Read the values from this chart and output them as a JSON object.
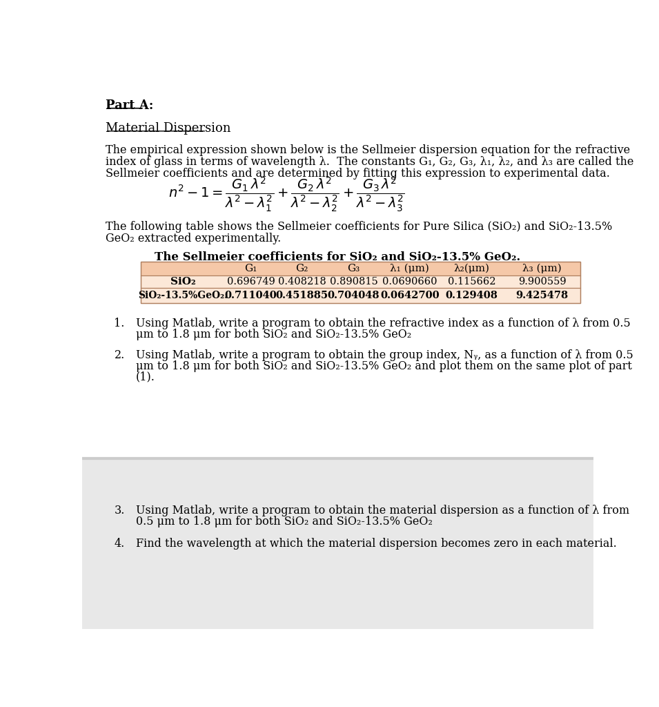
{
  "bg_color": "#ffffff",
  "part_a_title": "Part A:",
  "subtitle": "Material Dispersion",
  "para1_line1": "The empirical expression shown below is the Sellmeier dispersion equation for the refractive",
  "para1_line2": "index of glass in terms of wavelength λ.  The constants G₁, G₂, G₃, λ₁, λ₂, and λ₃ are called the",
  "para1_line3": "Sellmeier coefficients and are determined by fitting this expression to experimental data.",
  "para2_line1": "The following table shows the Sellmeier coefficients for Pure Silica (SiO₂) and SiO₂-13.5%",
  "para2_line2": "GeO₂ extracted experimentally.",
  "table_title": "The Sellmeier coefficients for SiO₂ and SiO₂-13.5% GeO₂.",
  "col_headers": [
    "G₁",
    "G₂",
    "G₃",
    "λ₁ (μm)",
    "λ₂(μm)",
    "λ₃ (μm)"
  ],
  "row1_label": "SiO₂",
  "row1_data": [
    "0.696749",
    "0.408218",
    "0.890815",
    "0.0690660",
    "0.115662",
    "9.900559"
  ],
  "row2_label": "SiO₂-13.5%GeO₂.",
  "row2_data": [
    "0.711040",
    "0.451885",
    "0.704048",
    "0.0642700",
    "0.129408",
    "9.425478"
  ],
  "item1_a": "Using Matlab, write a program to obtain the refractive index as a function of λ from 0.5",
  "item1_b": "μm to 1.8 μm for both SiO₂ and SiO₂-13.5% GeO₂",
  "item2_a": "Using Matlab, write a program to obtain the group index, Nᵧ, as a function of λ from 0.5",
  "item2_b": "μm to 1.8 μm for both SiO₂ and SiO₂-13.5% GeO₂ and plot them on the same plot of part",
  "item2_c": "(1).",
  "item3_a": "Using Matlab, write a program to obtain the material dispersion as a function of λ from",
  "item3_b": "0.5 μm to 1.8 μm for both SiO₂ and SiO₂-13.5% GeO₂",
  "item4": "Find the wavelength at which the material dispersion becomes zero in each material.",
  "header_bg": "#f5c8a8",
  "row_bg": "#fce8d8",
  "border_color": "#b08060",
  "divider_color": "#cccccc",
  "gray_bg": "#e8e8e8"
}
